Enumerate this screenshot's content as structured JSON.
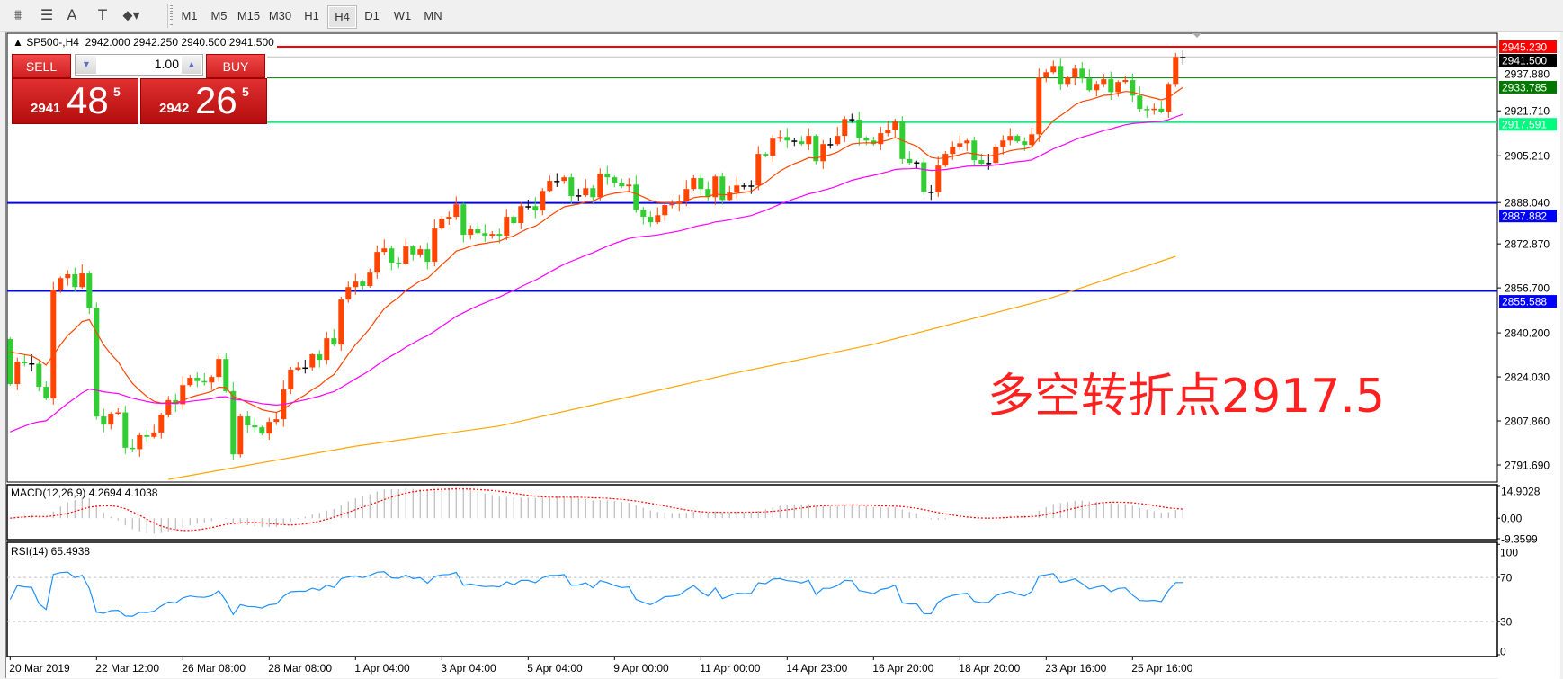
{
  "toolbar": {
    "icons": [
      "fibonacci-fan-icon",
      "fibonacci-icon",
      "text-icon",
      "text-label-icon",
      "arrows-dropdown-icon"
    ],
    "icon_glyphs": [
      "⩩",
      "☰",
      "A",
      "T",
      "⬥▾"
    ],
    "timeframes": [
      "M1",
      "M5",
      "M15",
      "M30",
      "H1",
      "H4",
      "D1",
      "W1",
      "MN"
    ],
    "active_timeframe": "H4"
  },
  "header": {
    "text": "SP500-,H4  2942.000 2942.250 2940.500 2941.500"
  },
  "trade_panel": {
    "sell_label": "SELL",
    "buy_label": "BUY",
    "volume": "1.00",
    "sell_price": {
      "prefix": "2941",
      "big": "48",
      "sup": "5"
    },
    "buy_price": {
      "prefix": "2942",
      "big": "26",
      "sup": "5"
    }
  },
  "annotation": "多空转折点2917.5",
  "colors": {
    "bull": "#ff4500",
    "bear": "#32cd32",
    "ma_fast": "#ff4500",
    "ma_mid": "#ff00ff",
    "ma_slow": "#ffa500",
    "rsi": "#1e90ff",
    "macd_hist": "#c0c0c0",
    "macd_signal": "#ff0000"
  },
  "chart": {
    "symbol": "SP500-",
    "timeframe": "H4",
    "y_range": [
      2791.69,
      2945.23
    ],
    "first_open": 2837.9,
    "closes": [
      2821.4,
      2829.6,
      2829.0,
      2828.8,
      2820.4,
      2816.1,
      2856.0,
      2860.3,
      2861.7,
      2857.0,
      2862.0,
      2849.4,
      2809.5,
      2806.5,
      2810.5,
      2811.0,
      2798.0,
      2797.5,
      2802.6,
      2802.0,
      2803.6,
      2810.2,
      2815.5,
      2814.0,
      2821.0,
      2823.7,
      2822.5,
      2822.0,
      2824.0,
      2830.6,
      2818.8,
      2795.6,
      2809.5,
      2806.2,
      2805.5,
      2803.2,
      2807.5,
      2808.5,
      2819.4,
      2826.7,
      2827.5,
      2827.5,
      2832.3,
      2830.3,
      2838.2,
      2835.9,
      2852.4,
      2857.0,
      2859.0,
      2857.4,
      2862.3,
      2869.9,
      2871.2,
      2866.0,
      2865.6,
      2871.9,
      2869.0,
      2870.9,
      2866.3,
      2878.5,
      2882.1,
      2882.8,
      2887.4,
      2876.2,
      2878.2,
      2876.8,
      2875.9,
      2876.5,
      2875.9,
      2882.8,
      2880.5,
      2886.7,
      2886.7,
      2885.1,
      2892.3,
      2896.0,
      2896.0,
      2897.3,
      2890.4,
      2890.7,
      2893.3,
      2890.0,
      2898.6,
      2897.3,
      2895.3,
      2894.0,
      2894.6,
      2885.4,
      2882.8,
      2880.8,
      2883.4,
      2887.1,
      2887.5,
      2888.4,
      2893.0,
      2897.0,
      2893.0,
      2890.0,
      2897.6,
      2889.0,
      2891.7,
      2894.3,
      2894.0,
      2894.3,
      2905.9,
      2905.2,
      2911.5,
      2912.1,
      2910.8,
      2910.5,
      2909.5,
      2912.5,
      2903.2,
      2909.5,
      2909.5,
      2912.5,
      2918.7,
      2918.5,
      2911.8,
      2910.8,
      2909.5,
      2913.5,
      2914.8,
      2917.8,
      2904.0,
      2902.6,
      2902.8,
      2892.0,
      2891.8,
      2901.6,
      2905.9,
      2908.5,
      2909.8,
      2910.8,
      2903.6,
      2902.3,
      2902.6,
      2908.5,
      2910.8,
      2912.5,
      2910.5,
      2909.2,
      2913.1,
      2933.9,
      2935.9,
      2938.2,
      2931.6,
      2933.9,
      2937.2,
      2933.6,
      2929.3,
      2931.6,
      2933.3,
      2928.6,
      2932.3,
      2933.0,
      2927.3,
      2922.4,
      2922.0,
      2922.5,
      2921.4,
      2931.6,
      2941.5,
      2941.5
    ],
    "ma_slow_points": [
      [
        22,
        2786.4
      ],
      [
        48,
        2798.6
      ],
      [
        68,
        2806.0
      ],
      [
        100,
        2825.0
      ],
      [
        120,
        2836.0
      ],
      [
        144,
        2852.4
      ],
      [
        162,
        2868.3
      ]
    ],
    "price_ticks": [
      "2937.880",
      "2921.710",
      "2905.210",
      "2888.040",
      "2872.870",
      "2856.700",
      "2840.200",
      "2824.030",
      "2807.860",
      "2791.690"
    ],
    "levels": [
      {
        "label": "2945.230",
        "color": "#ff0000",
        "text_color": "#ffffff",
        "full": false
      },
      {
        "label": "2941.500",
        "color": "#c0c0c0",
        "box": "#000000",
        "text_color": "#ffffff",
        "full": false
      },
      {
        "label": "2933.785",
        "color": "#007800",
        "text_color": "#ffffff",
        "full": false
      },
      {
        "label": "2917.591",
        "color": "#00fa80",
        "text_color": "#ffffff",
        "full": false
      },
      {
        "label": "2887.882",
        "color": "#0000ff",
        "text_color": "#ffffff",
        "full": true
      },
      {
        "label": "2855.588",
        "color": "#0000ff",
        "text_color": "#ffffff",
        "full": true
      }
    ],
    "time_labels": [
      "20 Mar 2019",
      "22 Mar 12:00",
      "26 Mar 08:00",
      "28 Mar 08:00",
      "1 Apr 04:00",
      "3 Apr 04:00",
      "5 Apr 04:00",
      "9 Apr 00:00",
      "11 Apr 00:00",
      "14 Apr 23:00",
      "16 Apr 20:00",
      "18 Apr 20:00",
      "23 Apr 16:00",
      "25 Apr 16:00"
    ]
  },
  "macd": {
    "label": "MACD(12,26,9) 4.2694 4.1038",
    "ticks": [
      "14.9028",
      "0.00",
      "-9.3599"
    ],
    "range": [
      -9.3599,
      14.9028
    ]
  },
  "rsi": {
    "label": "RSI(14) 65.4938",
    "ticks": [
      "100",
      "70",
      "30",
      "0"
    ],
    "levels": [
      70,
      30
    ]
  }
}
